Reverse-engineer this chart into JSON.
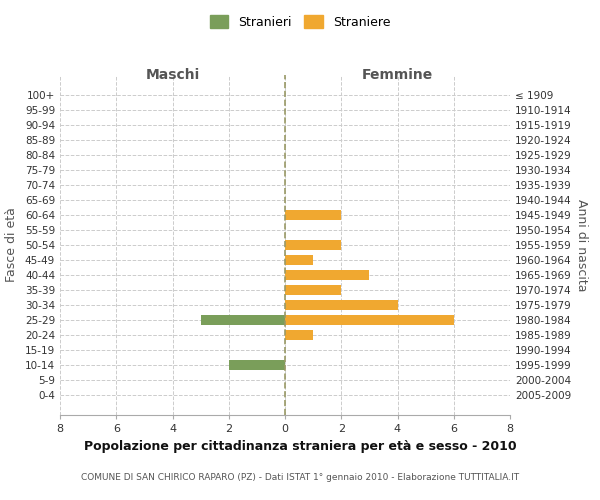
{
  "age_groups": [
    "100+",
    "95-99",
    "90-94",
    "85-89",
    "80-84",
    "75-79",
    "70-74",
    "65-69",
    "60-64",
    "55-59",
    "50-54",
    "45-49",
    "40-44",
    "35-39",
    "30-34",
    "25-29",
    "20-24",
    "15-19",
    "10-14",
    "5-9",
    "0-4"
  ],
  "birth_years": [
    "≤ 1909",
    "1910-1914",
    "1915-1919",
    "1920-1924",
    "1925-1929",
    "1930-1934",
    "1935-1939",
    "1940-1944",
    "1945-1949",
    "1950-1954",
    "1955-1959",
    "1960-1964",
    "1965-1969",
    "1970-1974",
    "1975-1979",
    "1980-1984",
    "1985-1989",
    "1990-1994",
    "1995-1999",
    "2000-2004",
    "2005-2009"
  ],
  "maschi": [
    0,
    0,
    0,
    0,
    0,
    0,
    0,
    0,
    0,
    0,
    0,
    0,
    0,
    0,
    0,
    3,
    0,
    0,
    2,
    0,
    0
  ],
  "femmine": [
    0,
    0,
    0,
    0,
    0,
    0,
    0,
    0,
    2,
    0,
    2,
    1,
    3,
    2,
    4,
    6,
    1,
    0,
    0,
    0,
    0
  ],
  "color_maschi": "#7a9e5a",
  "color_femmine": "#f0a830",
  "xlabel_left": "Maschi",
  "xlabel_right": "Femmine",
  "ylabel_left": "Fasce di età",
  "ylabel_right": "Anni di nascita",
  "title": "Popolazione per cittadinanza straniera per età e sesso - 2010",
  "subtitle": "COMUNE DI SAN CHIRICO RAPARO (PZ) - Dati ISTAT 1° gennaio 2010 - Elaborazione TUTTITALIA.IT",
  "legend_maschi": "Stranieri",
  "legend_femmine": "Straniere",
  "xmin": -8,
  "xmax": 8,
  "xticks": [
    -8,
    -6,
    -4,
    -2,
    0,
    2,
    4,
    6,
    8
  ],
  "xticklabels": [
    "8",
    "6",
    "4",
    "2",
    "0",
    "2",
    "4",
    "6",
    "8"
  ],
  "background_color": "#ffffff",
  "grid_color": "#cccccc",
  "dashed_line_color": "#999966"
}
